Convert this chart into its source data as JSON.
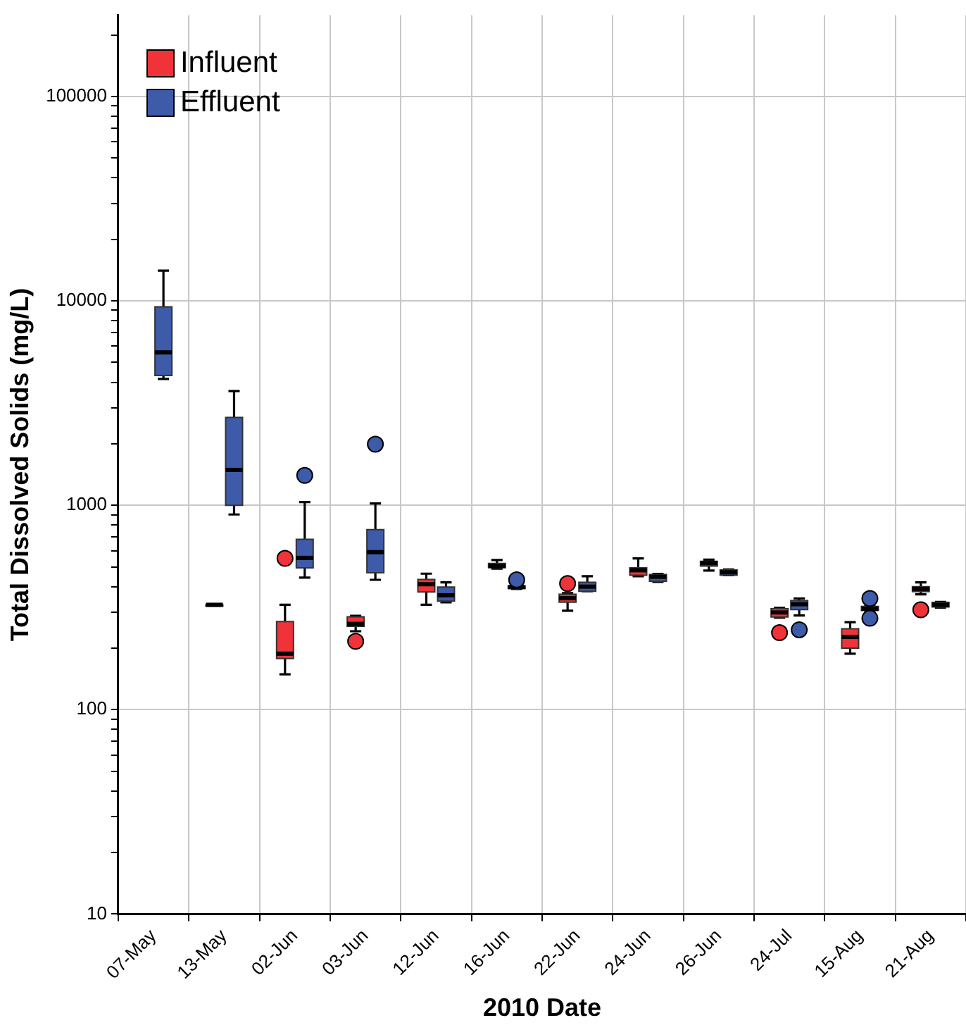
{
  "chart_data": {
    "type": "box",
    "xlabel": "2010 Date",
    "ylabel": "Total Dissolved Solids (mg/L)",
    "categories": [
      "07-May",
      "13-May",
      "02-Jun",
      "03-Jun",
      "12-Jun",
      "16-Jun",
      "22-Jun",
      "24-Jun",
      "26-Jun",
      "24-Jul",
      "15-Aug",
      "21-Aug"
    ],
    "series": [
      {
        "name": "Influent",
        "color": "#ef3339",
        "boxes": [
          null,
          {
            "low": 326,
            "q1": 326,
            "median": 326,
            "q3": 326,
            "high": 326
          },
          {
            "low": 149,
            "q1": 178,
            "median": 188,
            "q3": 270,
            "high": 326,
            "outliers": [
              550
            ]
          },
          {
            "low": 242,
            "q1": 256,
            "median": 263,
            "q3": 285,
            "high": 288,
            "outliers": [
              216
            ]
          },
          {
            "low": 326,
            "q1": 377,
            "median": 411,
            "q3": 434,
            "high": 463
          },
          {
            "low": 490,
            "q1": 495,
            "median": 505,
            "q3": 520,
            "high": 540
          },
          {
            "low": 305,
            "q1": 336,
            "median": 351,
            "q3": 367,
            "high": 372,
            "outliers": [
              414
            ]
          },
          {
            "low": 450,
            "q1": 455,
            "median": 481,
            "q3": 494,
            "high": 550
          },
          {
            "low": 479,
            "q1": 504,
            "median": 521,
            "q3": 532,
            "high": 542
          },
          {
            "low": 282,
            "q1": 284,
            "median": 299,
            "q3": 312,
            "high": 315,
            "outliers": [
              238
            ]
          },
          {
            "low": 188,
            "q1": 200,
            "median": 227,
            "q3": 249,
            "high": 268
          },
          {
            "low": 367,
            "q1": 378,
            "median": 390,
            "q3": 400,
            "high": 420,
            "outliers": [
              308
            ]
          }
        ]
      },
      {
        "name": "Effluent",
        "color": "#3e5ba9",
        "boxes": [
          {
            "low": 4150,
            "q1": 4320,
            "median": 5600,
            "q3": 9350,
            "high": 14060
          },
          {
            "low": 902,
            "q1": 1000,
            "median": 1490,
            "q3": 2690,
            "high": 3620
          },
          {
            "low": 443,
            "q1": 494,
            "median": 553,
            "q3": 682,
            "high": 1038,
            "outliers": [
              1400
            ]
          },
          {
            "low": 432,
            "q1": 468,
            "median": 590,
            "q3": 760,
            "high": 1021,
            "outliers": [
              1990
            ]
          },
          {
            "low": 335,
            "q1": 340,
            "median": 363,
            "q3": 398,
            "high": 420
          },
          {
            "low": 390,
            "q1": 392,
            "median": 398,
            "q3": 403,
            "high": 405,
            "outliers": [
              432
            ]
          },
          {
            "low": 380,
            "q1": 380,
            "median": 400,
            "q3": 420,
            "high": 450
          },
          {
            "low": 422,
            "q1": 425,
            "median": 447,
            "q3": 458,
            "high": 462
          },
          {
            "low": 455,
            "q1": 455,
            "median": 470,
            "q3": 483,
            "high": 485
          },
          {
            "low": 289,
            "q1": 309,
            "median": 328,
            "q3": 342,
            "high": 350,
            "outliers": [
              246
            ]
          },
          {
            "low": 305,
            "q1": 306,
            "median": 312,
            "q3": 320,
            "high": 322,
            "outliers": [
              350,
              280
            ]
          },
          {
            "low": 316,
            "q1": 318,
            "median": 326,
            "q3": 335,
            "high": 337
          }
        ]
      }
    ],
    "log": true,
    "ylim": [
      10,
      250000
    ],
    "yticks": [
      10,
      {
        "value": 20,
        "label": null
      },
      {
        "value": 30,
        "label": null
      },
      {
        "value": 40,
        "label": null
      },
      {
        "value": 50,
        "label": null
      },
      {
        "value": 60,
        "label": null
      },
      {
        "value": 70,
        "label": null
      },
      {
        "value": 80,
        "label": null
      },
      {
        "value": 90,
        "label": null
      },
      100,
      {
        "value": 200,
        "label": null
      },
      {
        "value": 300,
        "label": null
      },
      {
        "value": 400,
        "label": null
      },
      {
        "value": 500,
        "label": null
      },
      {
        "value": 600,
        "label": null
      },
      {
        "value": 700,
        "label": null
      },
      {
        "value": 800,
        "label": null
      },
      {
        "value": 900,
        "label": null
      },
      1000,
      {
        "value": 2000,
        "label": null
      },
      {
        "value": 3000,
        "label": null
      },
      {
        "value": 4000,
        "label": null
      },
      {
        "value": 5000,
        "label": null
      },
      {
        "value": 6000,
        "label": null
      },
      {
        "value": 7000,
        "label": null
      },
      {
        "value": 8000,
        "label": null
      },
      {
        "value": 9000,
        "label": null
      },
      10000,
      {
        "value": 20000,
        "label": null
      },
      {
        "value": 30000,
        "label": null
      },
      {
        "value": 40000,
        "label": null
      },
      {
        "value": 50000,
        "label": null
      },
      {
        "value": 60000,
        "label": null
      },
      {
        "value": 70000,
        "label": null
      },
      {
        "value": 80000,
        "label": null
      },
      {
        "value": 90000,
        "label": null
      },
      100000,
      {
        "value": 200000,
        "label": null
      }
    ],
    "grid": true,
    "legend": "top left"
  }
}
